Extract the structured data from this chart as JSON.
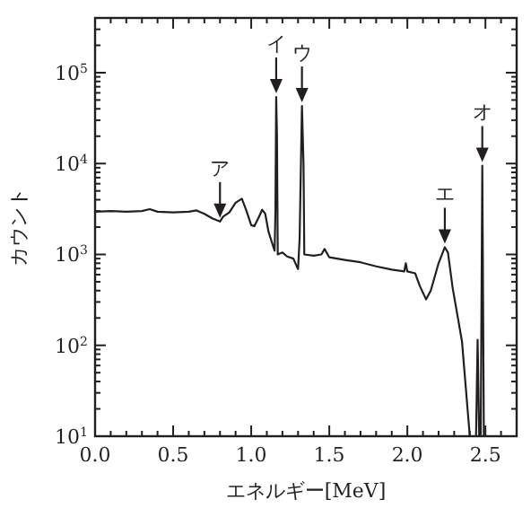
{
  "chart_data": {
    "type": "line",
    "xlabel": "エネルギー[MeV]",
    "ylabel": "カウント",
    "log": "y",
    "grid": false,
    "marker": "none",
    "line_style": "solid",
    "xlim": [
      0,
      2.7
    ],
    "ylim": [
      10,
      400000
    ],
    "xticks": [
      {
        "value": 0,
        "label": "0.0"
      },
      {
        "value": 0.5,
        "label": "0.5"
      },
      {
        "value": 1,
        "label": "1.0"
      },
      {
        "value": 1.5,
        "label": "1.5"
      },
      {
        "value": 2,
        "label": "2.0"
      },
      {
        "value": 2.5,
        "label": "2.5"
      }
    ],
    "yticks": [
      {
        "value": 10,
        "label": "10$^{1}$"
      },
      {
        "value": 100,
        "label": "10$^{2}$"
      },
      {
        "value": 1000,
        "label": "10$^{3}$"
      },
      {
        "value": 10000,
        "label": "10$^{4}$"
      },
      {
        "value": 100000,
        "label": "10$^{5}$"
      }
    ],
    "series": [
      {
        "color": "#231f20",
        "x": [
          0,
          0.1,
          0.2,
          0.3,
          0.35,
          0.4,
          0.5,
          0.6,
          0.65,
          0.7,
          0.75,
          0.8,
          0.82,
          0.86,
          0.9,
          0.94,
          0.97,
          1,
          1.02,
          1.05,
          1.07,
          1.09,
          1.11,
          1.13,
          1.15,
          1.155,
          1.16,
          1.165,
          1.17,
          1.2,
          1.23,
          1.27,
          1.29,
          1.3,
          1.31,
          1.325,
          1.335,
          1.34,
          1.4,
          1.45,
          1.47,
          1.5,
          1.6,
          1.7,
          1.8,
          1.9,
          1.98,
          1.99,
          2,
          2.05,
          2.08,
          2.12,
          2.15,
          2.2,
          2.24,
          2.26,
          2.29,
          2.35,
          2.4,
          2.44,
          2.45,
          2.46,
          2.47,
          2.48,
          2.49
        ],
        "values": [
          2950,
          3000,
          2950,
          3000,
          3150,
          2950,
          2900,
          2950,
          3050,
          2800,
          2500,
          2300,
          2600,
          2900,
          3700,
          4100,
          3000,
          2100,
          2050,
          2600,
          3100,
          2800,
          1800,
          1400,
          1100,
          3000,
          54000,
          20000,
          1000,
          1050,
          950,
          900,
          750,
          690,
          1500,
          43000,
          10000,
          1000,
          970,
          1000,
          1150,
          930,
          870,
          820,
          740,
          680,
          650,
          800,
          650,
          620,
          450,
          320,
          400,
          800,
          1200,
          1050,
          430,
          110,
          10,
          10,
          115,
          10,
          10,
          9500,
          10
        ]
      }
    ],
    "annotations": [
      {
        "text": "ア",
        "x": 0.8,
        "y": 2300
      },
      {
        "text": "イ",
        "x": 1.16,
        "y": 54000
      },
      {
        "text": "ウ",
        "x": 1.325,
        "y": 43000
      },
      {
        "text": "エ",
        "x": 2.24,
        "y": 1200
      },
      {
        "text": "オ",
        "x": 2.48,
        "y": 9500
      }
    ]
  }
}
